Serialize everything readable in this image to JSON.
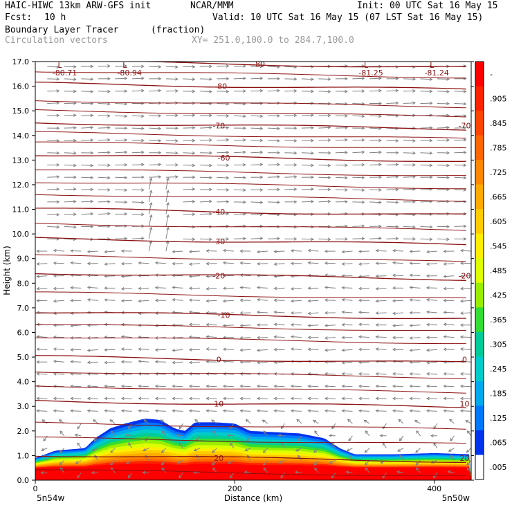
{
  "header": {
    "model": "HAIC-HIWC 13km ARW-GFS init",
    "org": "NCAR/MMM",
    "init": "Init: 00 UTC Sat 16 May 15",
    "fcst_label": "Fcst:",
    "fcst_value": "10 h",
    "valid": "Valid: 10 UTC Sat 16 May 15 (07 LST Sat 16 May 15)",
    "field": "Boundary Layer Tracer",
    "field_unit": "(fraction)",
    "vectors": "Circulation vectors",
    "xy": "XY= 251.0,100.0 to 284.7,100.0"
  },
  "colors": {
    "contour": "#8b1010",
    "vector": "#808080"
  },
  "chart_data": {
    "type": "heatmap",
    "xlabel": "Distance (km)",
    "ylabel": "Height (km)",
    "xlim": [
      0,
      437
    ],
    "ylim": [
      0,
      17
    ],
    "x_ticks": [
      "0",
      "200",
      "400"
    ],
    "y_ticks": [
      "0.0",
      "1.0",
      "2.0",
      "3.0",
      "4.0",
      "5.0",
      "6.0",
      "7.0",
      "8.0",
      "9.0",
      "10.0",
      "11.0",
      "12.0",
      "13.0",
      "14.0",
      "15.0",
      "16.0",
      "17.0"
    ],
    "x_left_label": "5n54w",
    "x_right_label": "5n50w",
    "colorbar_ticks": [
      "-",
      ".905",
      ".845",
      ".785",
      ".725",
      ".665",
      ".605",
      ".545",
      ".485",
      ".425",
      ".365",
      ".305",
      ".245",
      ".185",
      ".125",
      ".065",
      ".005"
    ],
    "colorbar_colors": [
      "#ff0000",
      "#ff2200",
      "#ff4400",
      "#ff6600",
      "#ff8800",
      "#ffaa00",
      "#ffcc00",
      "#ffee00",
      "#ddff00",
      "#99ee00",
      "#33dd33",
      "#00cc99",
      "#00cccc",
      "#00aaee",
      "#0077ff",
      "#0033ee",
      "#ffffff"
    ],
    "tracer_top_km": [
      [
        0,
        0.9
      ],
      [
        20,
        1.2
      ],
      [
        50,
        1.3
      ],
      [
        60,
        1.7
      ],
      [
        75,
        2.1
      ],
      [
        90,
        2.3
      ],
      [
        110,
        2.5
      ],
      [
        125,
        2.45
      ],
      [
        140,
        2.1
      ],
      [
        150,
        2.0
      ],
      [
        160,
        2.35
      ],
      [
        180,
        2.35
      ],
      [
        200,
        2.3
      ],
      [
        215,
        2.0
      ],
      [
        240,
        1.95
      ],
      [
        265,
        1.9
      ],
      [
        290,
        1.7
      ],
      [
        305,
        1.3
      ],
      [
        320,
        1.05
      ],
      [
        360,
        1.05
      ],
      [
        400,
        1.1
      ],
      [
        437,
        1.05
      ]
    ],
    "temperature_contours": [
      {
        "label": "-80",
        "y_km": 16.9
      },
      {
        "label": "-80",
        "y_km": 16.0
      },
      {
        "label": "-70",
        "y_km": 14.4
      },
      {
        "label": "-60",
        "y_km": 13.1
      },
      {
        "label": "-40",
        "y_km": 10.9
      },
      {
        "label": "-30",
        "y_km": 9.7
      },
      {
        "label": "-20",
        "y_km": 8.3
      },
      {
        "label": "-10",
        "y_km": 6.7
      },
      {
        "label": "0",
        "y_km": 4.9
      },
      {
        "label": "10",
        "y_km": 3.1
      },
      {
        "label": "20",
        "y_km": 0.9
      }
    ],
    "pressure_minima": [
      {
        "symbol": "L",
        "value": "-80.71",
        "x_km": 35
      },
      {
        "symbol": "L",
        "value": "-80.94",
        "x_km": 100
      },
      {
        "symbol": "L",
        "value": "-81.25",
        "x_km": 342
      },
      {
        "symbol": "L",
        "value": "-81.24",
        "x_km": 408
      }
    ]
  }
}
